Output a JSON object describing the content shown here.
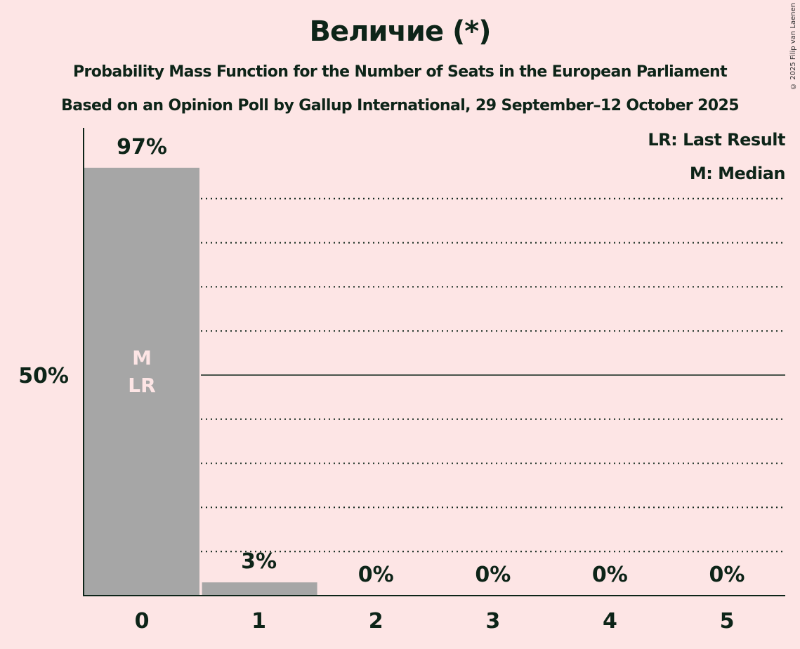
{
  "title": "Величие (*)",
  "subtitle1": "Probability Mass Function for the Number of Seats in the European Parliament",
  "subtitle2": "Based on an Opinion Poll by Gallup International, 29 September–12 October 2025",
  "copyright": "© 2025 Filip van Laenen",
  "legend": {
    "lr": "LR: Last Result",
    "m": "M: Median"
  },
  "bar_markers": {
    "median": "M",
    "last_result": "LR"
  },
  "colors": {
    "background": "#fde5e5",
    "bar": "#a6a6a6",
    "text": "#0d2418",
    "marker_text": "#fde5e5"
  },
  "chart_data": {
    "type": "bar",
    "title": "Величие (*)",
    "subtitle": "Probability Mass Function for the Number of Seats in the European Parliament",
    "categories": [
      "0",
      "1",
      "2",
      "3",
      "4",
      "5"
    ],
    "values": [
      97,
      3,
      0,
      0,
      0,
      0
    ],
    "value_labels": [
      "97%",
      "3%",
      "0%",
      "0%",
      "0%",
      "0%"
    ],
    "xlabel": "",
    "ylabel": "",
    "ytick_labels": [
      "50%"
    ],
    "ylim": [
      0,
      100
    ],
    "grid": "dotted every 10%, solid at 50%",
    "median_seat": 0,
    "last_result_seat": 0,
    "legend_position": "top-right"
  }
}
